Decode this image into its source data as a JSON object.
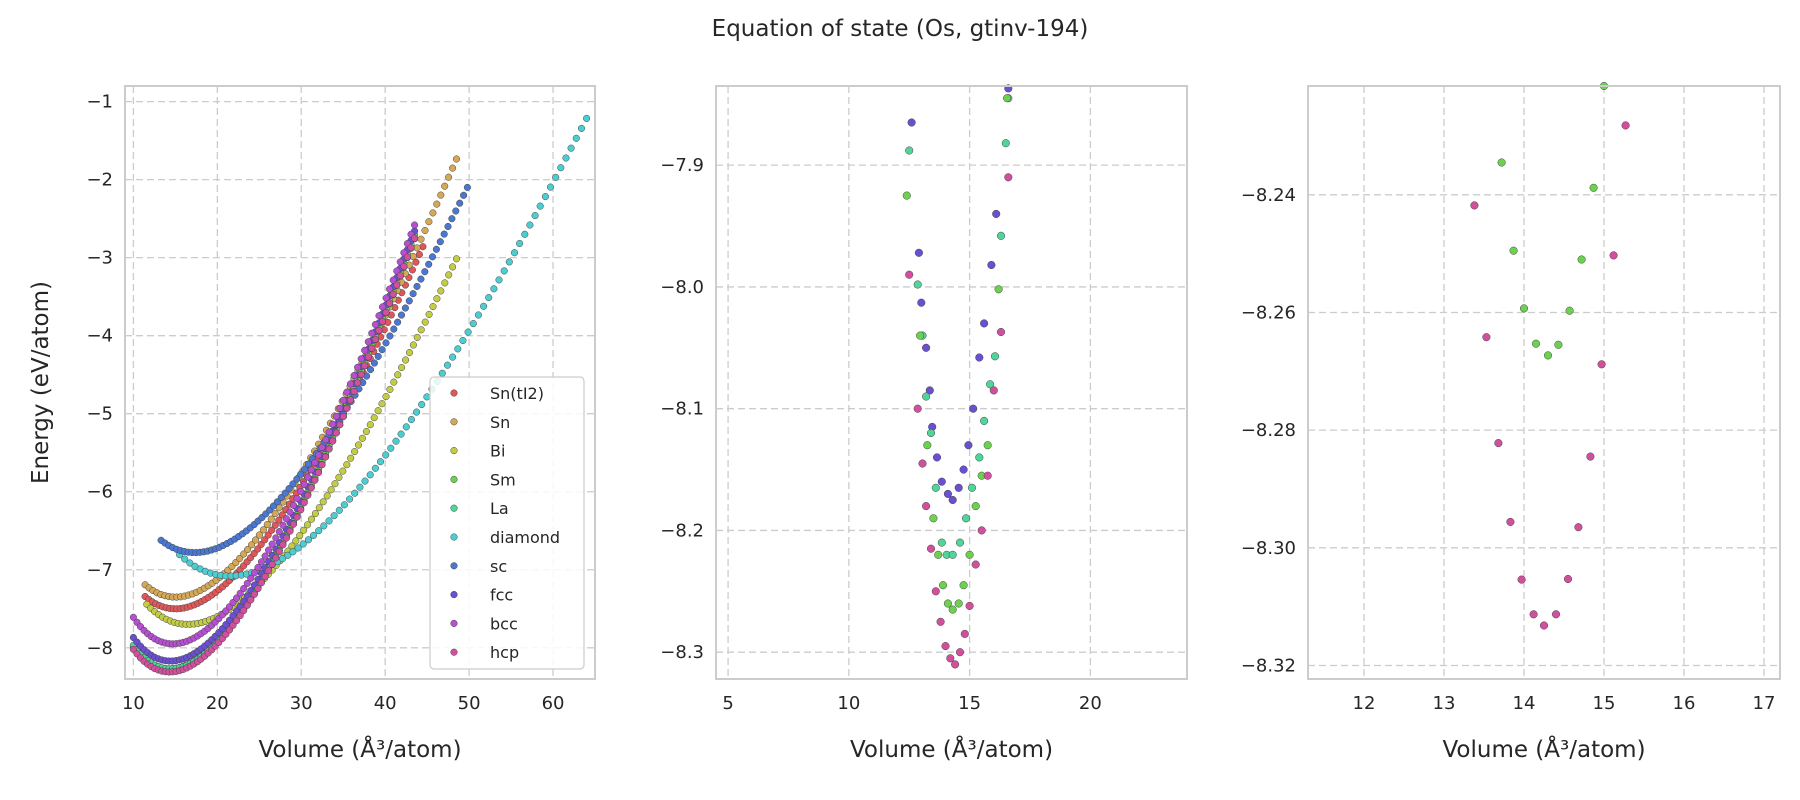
{
  "figure": {
    "title": "Equation of state (Os, gtinv-194)"
  },
  "chart_data": [
    {
      "type": "scatter",
      "xlabel": "Volume (Å³/atom)",
      "ylabel": "Energy (eV/atom)",
      "xlim": [
        9,
        65
      ],
      "ylim": [
        -8.4,
        -0.8
      ],
      "xticks": [
        10,
        20,
        30,
        40,
        50,
        60
      ],
      "yticks": [
        -8,
        -7,
        -6,
        -5,
        -4,
        -3,
        -2,
        -1
      ],
      "grid": true,
      "legend": "lower-right",
      "series": [
        {
          "name": "Sn(tI2)",
          "color": "#e15759",
          "v0": 15.0,
          "e0": -7.5,
          "b": 0.32,
          "xmin": 11.4,
          "xmax": 44.5,
          "n": 80
        },
        {
          "name": "Sn",
          "color": "#d4a857",
          "v0": 15.0,
          "e0": -7.35,
          "b": 0.32,
          "xmin": 11.4,
          "xmax": 48.5,
          "n": 80
        },
        {
          "name": "Bi",
          "color": "#c2cc45",
          "v0": 16.5,
          "e0": -7.7,
          "b": 0.3,
          "xmin": 11.6,
          "xmax": 48.5,
          "n": 80
        },
        {
          "name": "Sm",
          "color": "#6bd14f",
          "v0": 14.3,
          "e0": -8.27,
          "b": 0.38,
          "xmin": 10.0,
          "xmax": 43.5,
          "n": 80
        },
        {
          "name": "La",
          "color": "#4fd49a",
          "v0": 14.4,
          "e0": -8.27,
          "b": 0.38,
          "xmin": 10.0,
          "xmax": 43.5,
          "n": 80
        },
        {
          "name": "diamond",
          "color": "#4ccdd1",
          "v0": 21.5,
          "e0": -7.08,
          "b": 0.28,
          "xmin": 15.5,
          "xmax": 64.0,
          "n": 80
        },
        {
          "name": "sc",
          "color": "#4a78d0",
          "v0": 17.3,
          "e0": -6.78,
          "b": 0.3,
          "xmin": 13.3,
          "xmax": 49.8,
          "n": 80
        },
        {
          "name": "fcc",
          "color": "#6a4fd2",
          "v0": 14.4,
          "e0": -8.17,
          "b": 0.38,
          "xmin": 10.0,
          "xmax": 43.5,
          "n": 80
        },
        {
          "name": "bcc",
          "color": "#b64fd1",
          "v0": 14.7,
          "e0": -7.95,
          "b": 0.38,
          "xmin": 10.0,
          "xmax": 43.5,
          "n": 80
        },
        {
          "name": "hcp",
          "color": "#d24f9e",
          "v0": 14.3,
          "e0": -8.31,
          "b": 0.38,
          "xmin": 10.0,
          "xmax": 43.5,
          "n": 80
        }
      ]
    },
    {
      "type": "scatter",
      "xlabel": "Volume (Å³/atom)",
      "ylabel": "",
      "xlim": [
        4.5,
        24.0
      ],
      "ylim": [
        -8.322,
        -7.835
      ],
      "xticks": [
        5,
        10,
        15,
        20
      ],
      "yticks": [
        -8.3,
        -8.2,
        -8.1,
        -8.0,
        -7.9
      ],
      "grid": true,
      "series": [
        {
          "name": "fcc",
          "color": "#6a4fd2",
          "points": [
            [
              12.6,
              -7.865
            ],
            [
              12.9,
              -7.972
            ],
            [
              13.0,
              -8.013
            ],
            [
              13.2,
              -8.05
            ],
            [
              13.35,
              -8.085
            ],
            [
              13.45,
              -8.115
            ],
            [
              13.65,
              -8.14
            ],
            [
              13.85,
              -8.16
            ],
            [
              14.1,
              -8.17
            ],
            [
              14.3,
              -8.175
            ],
            [
              14.55,
              -8.165
            ],
            [
              14.75,
              -8.15
            ],
            [
              14.95,
              -8.13
            ],
            [
              15.15,
              -8.1
            ],
            [
              15.4,
              -8.058
            ],
            [
              15.6,
              -8.03
            ],
            [
              15.9,
              -7.982
            ],
            [
              16.1,
              -7.94
            ],
            [
              16.6,
              -7.837
            ]
          ]
        },
        {
          "name": "La",
          "color": "#4fd49a",
          "points": [
            [
              12.5,
              -7.888
            ],
            [
              12.85,
              -7.998
            ],
            [
              13.05,
              -8.04
            ],
            [
              13.2,
              -8.09
            ],
            [
              13.4,
              -8.12
            ],
            [
              13.6,
              -8.165
            ],
            [
              13.85,
              -8.21
            ],
            [
              14.05,
              -8.22
            ],
            [
              14.3,
              -8.22
            ],
            [
              14.6,
              -8.21
            ],
            [
              14.85,
              -8.19
            ],
            [
              15.1,
              -8.165
            ],
            [
              15.4,
              -8.14
            ],
            [
              15.6,
              -8.11
            ],
            [
              15.85,
              -8.08
            ],
            [
              16.05,
              -8.057
            ],
            [
              16.3,
              -7.958
            ],
            [
              16.5,
              -7.882
            ],
            [
              16.6,
              -7.845
            ]
          ]
        },
        {
          "name": "Sm",
          "color": "#6bd14f",
          "points": [
            [
              12.4,
              -7.925
            ],
            [
              12.95,
              -8.04
            ],
            [
              13.25,
              -8.13
            ],
            [
              13.5,
              -8.19
            ],
            [
              13.7,
              -8.22
            ],
            [
              13.9,
              -8.245
            ],
            [
              14.1,
              -8.26
            ],
            [
              14.3,
              -8.265
            ],
            [
              14.55,
              -8.26
            ],
            [
              14.75,
              -8.245
            ],
            [
              15.0,
              -8.22
            ],
            [
              15.25,
              -8.18
            ],
            [
              15.5,
              -8.155
            ],
            [
              15.75,
              -8.13
            ],
            [
              16.2,
              -8.002
            ],
            [
              16.55,
              -7.845
            ]
          ]
        },
        {
          "name": "hcp",
          "color": "#d24f9e",
          "points": [
            [
              12.5,
              -7.99
            ],
            [
              12.85,
              -8.1
            ],
            [
              13.05,
              -8.145
            ],
            [
              13.2,
              -8.18
            ],
            [
              13.4,
              -8.215
            ],
            [
              13.6,
              -8.25
            ],
            [
              13.8,
              -8.275
            ],
            [
              14.0,
              -8.295
            ],
            [
              14.2,
              -8.305
            ],
            [
              14.4,
              -8.31
            ],
            [
              14.6,
              -8.3
            ],
            [
              14.8,
              -8.285
            ],
            [
              15.0,
              -8.262
            ],
            [
              15.25,
              -8.228
            ],
            [
              15.5,
              -8.2
            ],
            [
              15.75,
              -8.155
            ],
            [
              16.0,
              -8.085
            ],
            [
              16.3,
              -8.037
            ],
            [
              16.6,
              -7.91
            ]
          ]
        }
      ]
    },
    {
      "type": "scatter",
      "xlabel": "Volume (Å³/atom)",
      "ylabel": "",
      "xlim": [
        11.3,
        17.2
      ],
      "ylim": [
        -8.3223,
        -8.2215
      ],
      "xticks": [
        12,
        13,
        14,
        15,
        16,
        17
      ],
      "yticks": [
        -8.32,
        -8.3,
        -8.28,
        -8.26,
        -8.24
      ],
      "grid": true,
      "series": [
        {
          "name": "Sm",
          "color": "#6bd14f",
          "points": [
            [
              15.0,
              -8.2215
            ],
            [
              13.72,
              -8.2345
            ],
            [
              14.87,
              -8.2388
            ],
            [
              13.87,
              -8.2495
            ],
            [
              14.72,
              -8.251
            ],
            [
              14.0,
              -8.2593
            ],
            [
              14.57,
              -8.2597
            ],
            [
              14.15,
              -8.2653
            ],
            [
              14.43,
              -8.2655
            ],
            [
              14.3,
              -8.2673
            ]
          ]
        },
        {
          "name": "hcp",
          "color": "#d24f9e",
          "points": [
            [
              15.27,
              -8.2282
            ],
            [
              13.38,
              -8.2418
            ],
            [
              15.12,
              -8.2503
            ],
            [
              13.53,
              -8.2642
            ],
            [
              14.97,
              -8.2688
            ],
            [
              13.68,
              -8.2822
            ],
            [
              14.83,
              -8.2845
            ],
            [
              13.83,
              -8.2956
            ],
            [
              14.68,
              -8.2965
            ],
            [
              13.97,
              -8.3054
            ],
            [
              14.55,
              -8.3053
            ],
            [
              14.12,
              -8.3113
            ],
            [
              14.4,
              -8.3113
            ],
            [
              14.25,
              -8.3132
            ]
          ]
        }
      ]
    }
  ]
}
